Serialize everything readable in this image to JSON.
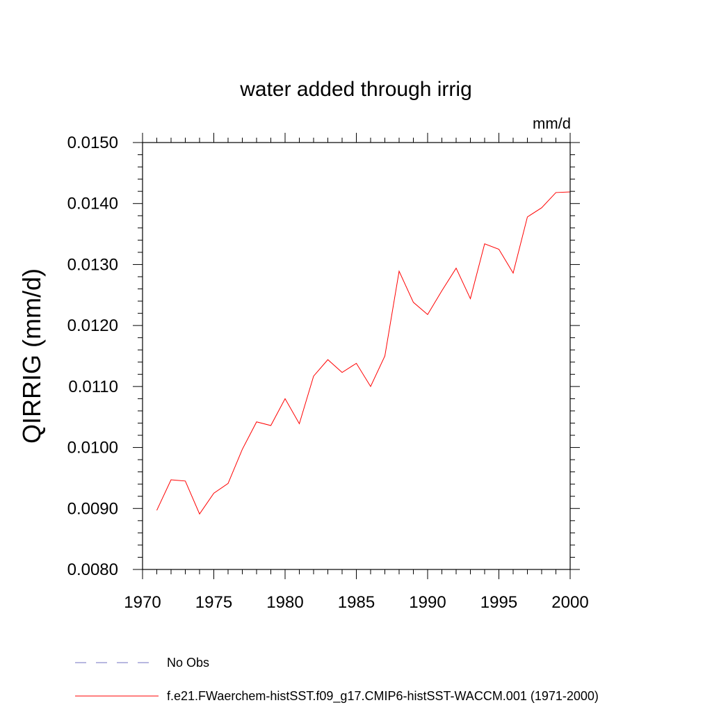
{
  "chart_data": {
    "type": "line",
    "title": "water added through irrig",
    "units_label": "mm/d",
    "ylabel": "QIRRIG  (mm/d)",
    "xlabel": "",
    "xlim": [
      1970,
      2000
    ],
    "ylim": [
      0.008,
      0.015
    ],
    "x_ticks": [
      1970,
      1975,
      1980,
      1985,
      1990,
      1995,
      2000
    ],
    "y_ticks": [
      "0.0080",
      "0.0090",
      "0.0100",
      "0.0110",
      "0.0120",
      "0.0130",
      "0.0140",
      "0.0150"
    ],
    "series": [
      {
        "name": "f.e21.FWaerchem-histSST.f09_g17.CMIP6-histSST-WACCM.001 (1971-2000)",
        "color": "#ff0000",
        "dash": "solid",
        "x": [
          1971,
          1972,
          1973,
          1974,
          1975,
          1976,
          1977,
          1978,
          1979,
          1980,
          1981,
          1982,
          1983,
          1984,
          1985,
          1986,
          1987,
          1988,
          1989,
          1990,
          1991,
          1992,
          1993,
          1994,
          1995,
          1996,
          1997,
          1998,
          1999,
          2000
        ],
        "y": [
          0.00897,
          0.00947,
          0.00945,
          0.00891,
          0.00925,
          0.00941,
          0.00997,
          0.01042,
          0.01036,
          0.0108,
          0.01039,
          0.01117,
          0.01144,
          0.01123,
          0.01138,
          0.011,
          0.0115,
          0.01289,
          0.01238,
          0.01218,
          0.01257,
          0.01294,
          0.01244,
          0.01334,
          0.01325,
          0.01286,
          0.01378,
          0.01393,
          0.01418,
          0.01419
        ]
      }
    ],
    "legend": [
      {
        "label": "No Obs",
        "color": "#7070c0",
        "dash": "dashed"
      },
      {
        "label": "f.e21.FWaerchem-histSST.f09_g17.CMIP6-histSST-WACCM.001 (1971-2000)",
        "color": "#ff0000",
        "dash": "solid"
      }
    ],
    "legend_placement": "bottom",
    "grid": false
  }
}
